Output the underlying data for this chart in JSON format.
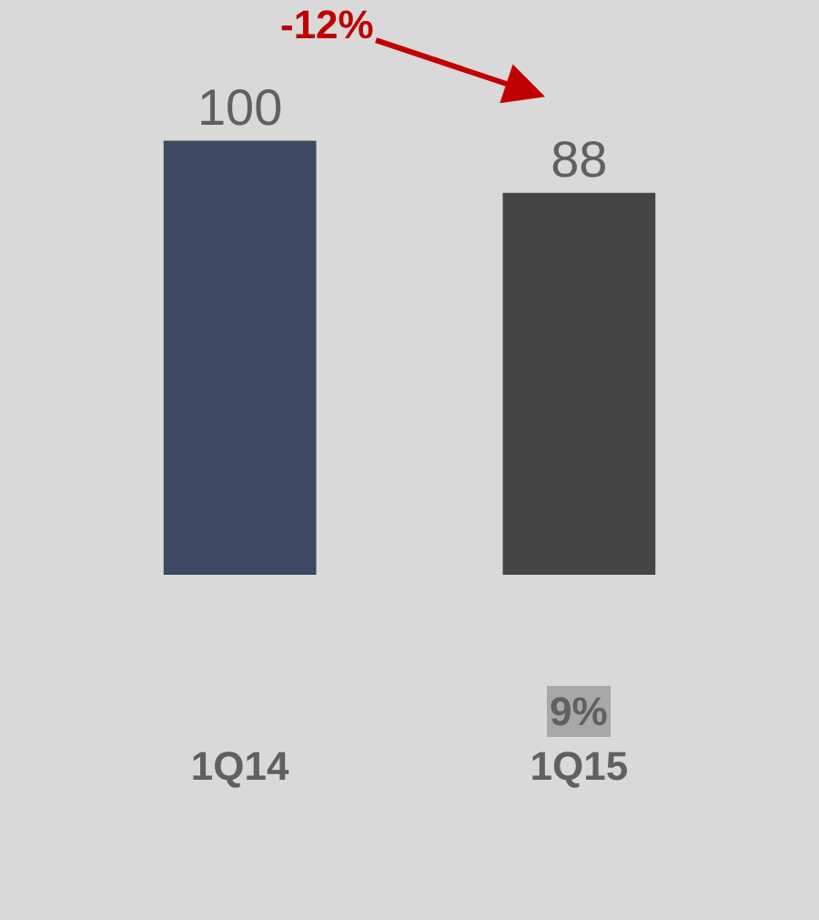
{
  "chart_data": {
    "type": "bar",
    "categories": [
      "1Q14",
      "1Q15"
    ],
    "values": [
      100,
      88
    ],
    "colors": [
      "#3b4a62",
      "#454545"
    ],
    "data_labels": true,
    "annotations": [
      "-12%",
      "9%"
    ]
  }
}
